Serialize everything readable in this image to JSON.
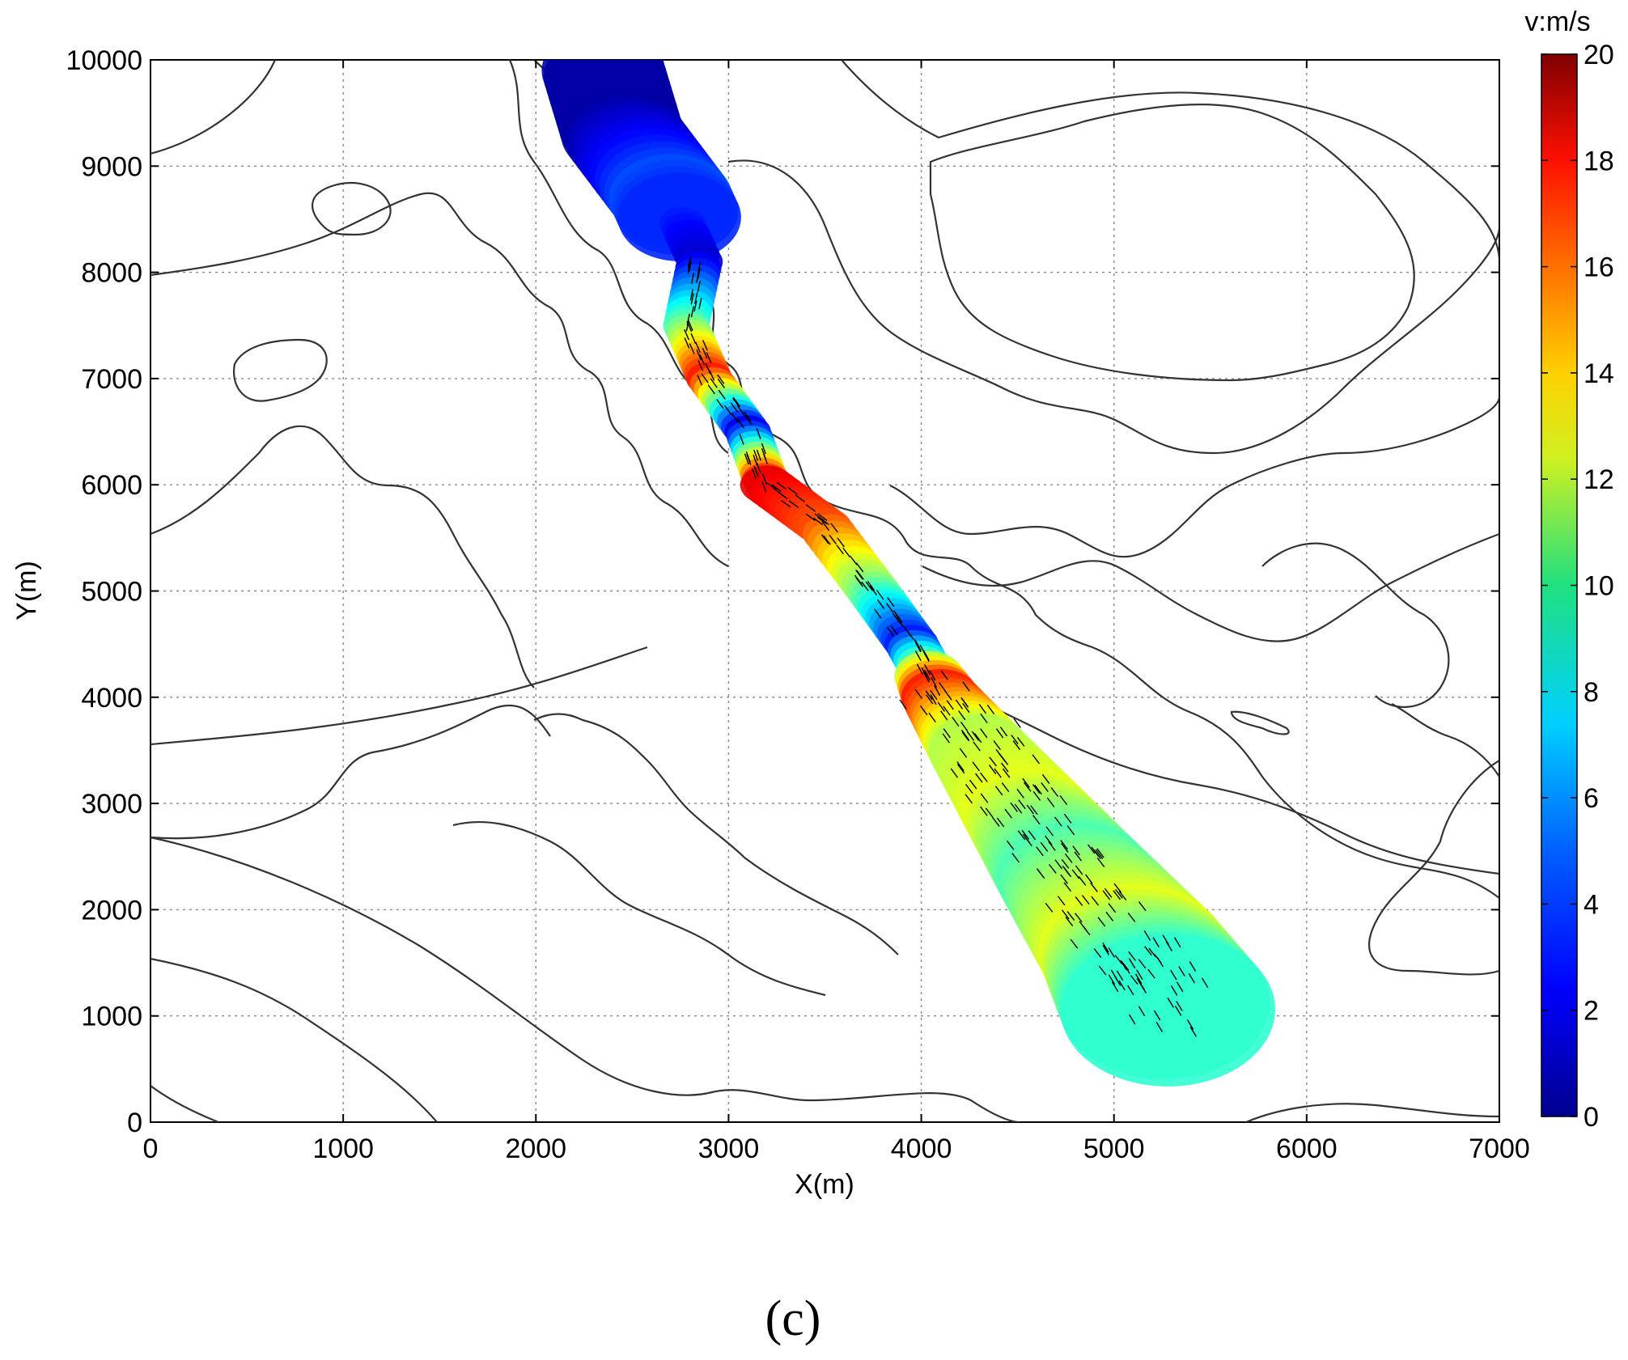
{
  "chart_data": {
    "type": "heatmap",
    "description_free": true,
    "xlabel": "X(m)",
    "ylabel": "Y(m)",
    "xlim": [
      0,
      7000
    ],
    "ylim": [
      0,
      10000
    ],
    "xticks": [
      0,
      1000,
      2000,
      3000,
      4000,
      5000,
      6000,
      7000
    ],
    "yticks": [
      0,
      1000,
      2000,
      3000,
      4000,
      5000,
      6000,
      7000,
      8000,
      9000,
      10000
    ],
    "grid": true,
    "colorbar": {
      "label": "v:m/s",
      "range": [
        0,
        20
      ],
      "ticks": [
        0,
        2,
        4,
        6,
        8,
        10,
        12,
        14,
        16,
        18,
        20
      ],
      "colormap": [
        "#00008f",
        "#0000ff",
        "#0080ff",
        "#00ffff",
        "#80ff80",
        "#ffff00",
        "#ff8000",
        "#ff0000",
        "#800000"
      ]
    },
    "flow_path": [
      {
        "x": 2350,
        "y": 9900,
        "v": 0.5
      },
      {
        "x": 2450,
        "y": 9300,
        "v": 0.5
      },
      {
        "x": 2700,
        "y": 8700,
        "v": 4
      },
      {
        "x": 2850,
        "y": 8100,
        "v": 1.5
      },
      {
        "x": 2780,
        "y": 7500,
        "v": 9
      },
      {
        "x": 2900,
        "y": 7000,
        "v": 17
      },
      {
        "x": 3100,
        "y": 6500,
        "v": 2
      },
      {
        "x": 3200,
        "y": 6000,
        "v": 18
      },
      {
        "x": 3500,
        "y": 5600,
        "v": 16
      },
      {
        "x": 3750,
        "y": 5000,
        "v": 10
      },
      {
        "x": 3950,
        "y": 4500,
        "v": 3
      },
      {
        "x": 4100,
        "y": 4000,
        "v": 17
      },
      {
        "x": 4300,
        "y": 3500,
        "v": 11
      },
      {
        "x": 4550,
        "y": 2900,
        "v": 12
      },
      {
        "x": 4800,
        "y": 2300,
        "v": 9
      },
      {
        "x": 5100,
        "y": 1600,
        "v": 12
      },
      {
        "x": 5300,
        "y": 1000,
        "v": 8
      }
    ]
  },
  "caption": "(c)"
}
